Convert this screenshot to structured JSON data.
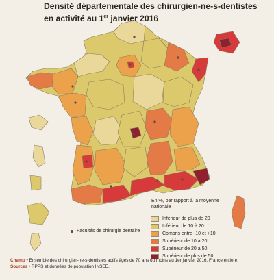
{
  "title_line1": "Densité départementale des chirurgien-ne-s-dentistes",
  "title_line2_pre": "en activité au 1",
  "title_line2_sup": "er",
  "title_line2_post": " janvier 2016",
  "legend": {
    "heading_line1": "En %, par rapport à la moyenne",
    "heading_line2": "nationale",
    "items": [
      {
        "label": "Inférieur de plus de 20",
        "color": "#ead79a"
      },
      {
        "label": "Inférieur de 10 à 20",
        "color": "#dcc96c"
      },
      {
        "label": "Compris entre -10 et +10",
        "color": "#eba24b"
      },
      {
        "label": "Supérieur de 10 à 20",
        "color": "#e47a45"
      },
      {
        "label": "Supérieur de 20 à 50",
        "color": "#d63a3a"
      },
      {
        "label": "Supérieur de plus de 50",
        "color": "#8e2030"
      }
    ]
  },
  "facultes_label": "Facultés de chirurgie dentaire",
  "champ_label": "Champ",
  "champ_text": "Ensemble des chirurgien-ne-s-dentistes actifs âgés de 70 ans ou moins au 1er janvier 2016, France entière.",
  "sources_label": "Sources",
  "sources_text": "RPPS et données de population INSEE."
}
